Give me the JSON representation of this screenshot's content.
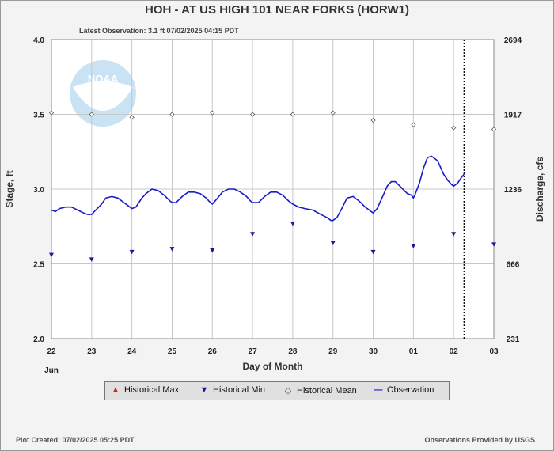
{
  "title": "HOH - AT US HIGH 101 NEAR FORKS  (HORW1)",
  "subtitle": "Latest Observation: 3.1 ft 07/02/2025 04:15 PDT",
  "footer_left": "Plot Created: 07/02/2025 05:25 PDT",
  "footer_right": "Observations Provided by USGS",
  "logo_text": "NOAA",
  "legend": {
    "max": "Historical Max",
    "min": "Historical Min",
    "mean": "Historical Mean",
    "obs": "Observation"
  },
  "colors": {
    "observation": "#1a1acc",
    "min": "#1a1a99",
    "max": "#cc2222",
    "mean": "#555555",
    "grid": "#c8c8c8",
    "plot_bg": "#ffffff"
  },
  "chart_data": {
    "type": "line",
    "xlabel": "Day of Month",
    "ylabel_left": "Stage, ft",
    "ylabel_right": "Discharge, cfs",
    "x_ticks": [
      "22",
      "23",
      "24",
      "25",
      "26",
      "27",
      "28",
      "29",
      "30",
      "01",
      "02",
      "03"
    ],
    "month_label": "Jun",
    "ylim": [
      2.0,
      4.0
    ],
    "y_ticks": [
      "2.0",
      "2.5",
      "3.0",
      "3.5",
      "4.0"
    ],
    "y2_ticks": [
      "231",
      "666",
      "1236",
      "1917",
      "2694"
    ],
    "latest_obs_x": 10.26,
    "series": [
      {
        "name": "Observation",
        "x": [
          0,
          0.1,
          0.2,
          0.35,
          0.5,
          0.65,
          0.8,
          0.9,
          1.0,
          1.1,
          1.25,
          1.35,
          1.5,
          1.65,
          1.8,
          1.95,
          2.0,
          2.1,
          2.25,
          2.35,
          2.5,
          2.65,
          2.8,
          2.95,
          3.0,
          3.1,
          3.25,
          3.4,
          3.55,
          3.7,
          3.85,
          3.95,
          4.0,
          4.1,
          4.25,
          4.4,
          4.55,
          4.7,
          4.85,
          4.95,
          5.0,
          5.15,
          5.3,
          5.45,
          5.6,
          5.75,
          5.9,
          6.0,
          6.15,
          6.3,
          6.5,
          6.7,
          6.85,
          6.95,
          7.0,
          7.1,
          7.2,
          7.35,
          7.5,
          7.65,
          7.8,
          7.95,
          8.0,
          8.1,
          8.25,
          8.35,
          8.45,
          8.55,
          8.7,
          8.85,
          8.95,
          9.0,
          9.05,
          9.15,
          9.25,
          9.35,
          9.45,
          9.6,
          9.75,
          9.85,
          9.95,
          10.0,
          10.1,
          10.2,
          10.26
        ],
        "values": [
          2.86,
          2.85,
          2.87,
          2.88,
          2.88,
          2.86,
          2.84,
          2.83,
          2.83,
          2.86,
          2.9,
          2.94,
          2.95,
          2.94,
          2.91,
          2.88,
          2.87,
          2.88,
          2.94,
          2.97,
          3.0,
          2.99,
          2.96,
          2.92,
          2.91,
          2.91,
          2.95,
          2.98,
          2.98,
          2.97,
          2.94,
          2.91,
          2.9,
          2.93,
          2.98,
          3.0,
          3.0,
          2.98,
          2.95,
          2.92,
          2.91,
          2.91,
          2.95,
          2.98,
          2.98,
          2.96,
          2.92,
          2.9,
          2.88,
          2.87,
          2.86,
          2.83,
          2.81,
          2.79,
          2.79,
          2.81,
          2.86,
          2.94,
          2.95,
          2.92,
          2.88,
          2.85,
          2.84,
          2.87,
          2.96,
          3.02,
          3.05,
          3.05,
          3.01,
          2.97,
          2.96,
          2.94,
          2.97,
          3.04,
          3.14,
          3.21,
          3.22,
          3.19,
          3.1,
          3.06,
          3.03,
          3.02,
          3.04,
          3.08,
          3.1
        ]
      },
      {
        "name": "Historical Mean",
        "x": [
          0,
          1,
          2,
          3,
          4,
          5,
          6,
          7,
          8,
          9,
          10,
          11
        ],
        "values": [
          3.51,
          3.5,
          3.48,
          3.5,
          3.51,
          3.5,
          3.5,
          3.51,
          3.46,
          3.43,
          3.41,
          3.4
        ]
      },
      {
        "name": "Historical Min",
        "x": [
          0,
          1,
          2,
          3,
          4,
          5,
          6,
          7,
          8,
          9,
          10,
          11
        ],
        "values": [
          2.56,
          2.53,
          2.58,
          2.6,
          2.59,
          2.7,
          2.77,
          2.64,
          2.58,
          2.62,
          2.7,
          2.63
        ]
      },
      {
        "name": "Historical Max",
        "x": [],
        "values": []
      }
    ]
  }
}
